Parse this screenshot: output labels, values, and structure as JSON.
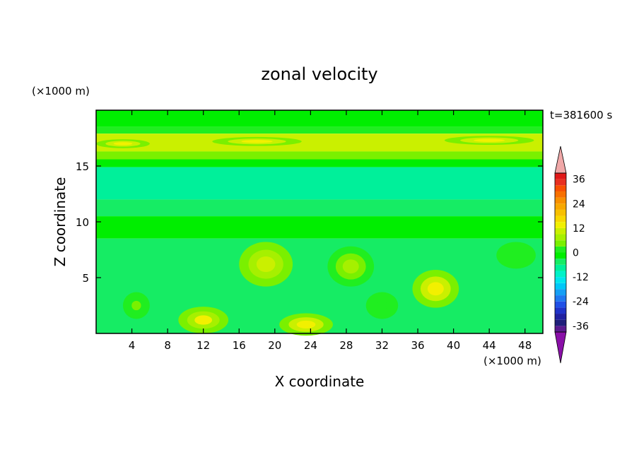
{
  "chart_data": {
    "type": "heatmap",
    "title": "zonal velocity",
    "xlabel": "X coordinate",
    "ylabel": "Z coordinate",
    "x_unit": "(×1000 m)",
    "y_unit": "(×1000 m)",
    "time_label": "t=381600 s",
    "xlim": [
      0,
      50
    ],
    "ylim": [
      0,
      20
    ],
    "x_ticks": [
      4,
      8,
      12,
      16,
      20,
      24,
      28,
      32,
      36,
      40,
      44,
      48
    ],
    "y_ticks": [
      5,
      10,
      15
    ],
    "colorbar": {
      "levels": [
        -39,
        -36,
        -33,
        -30,
        -27,
        -24,
        -21,
        -18,
        -15,
        -12,
        -9,
        -6,
        -3,
        0,
        3,
        6,
        9,
        12,
        15,
        18,
        21,
        24,
        27,
        30,
        33,
        36,
        39
      ],
      "colors": [
        "#5a1a8f",
        "#1f1f7a",
        "#2020a0",
        "#1f32c8",
        "#2050e6",
        "#1f78f0",
        "#159ff5",
        "#00c8f8",
        "#00e6ee",
        "#00f2c8",
        "#00f09a",
        "#16ec64",
        "#00ee00",
        "#20ee20",
        "#7af000",
        "#a6f000",
        "#caf000",
        "#f2f000",
        "#f8d800",
        "#f8c000",
        "#f8a800",
        "#f89000",
        "#f87000",
        "#f85000",
        "#e83020",
        "#e01818"
      ],
      "labels": [
        "36",
        "24",
        "12",
        "0",
        "-12",
        "-24",
        "-36"
      ],
      "label_values": [
        36,
        24,
        12,
        0,
        -12,
        -24,
        -36
      ],
      "over_color": "#f0a8a8",
      "under_color": "#8a10a8"
    },
    "field": {
      "band_rows": [
        {
          "z": [
            18.5,
            20
          ],
          "value": -3
        },
        {
          "z": [
            17.9,
            18.5
          ],
          "value": 1
        },
        {
          "z": [
            16.3,
            17.9
          ],
          "value": 9
        },
        {
          "z": [
            15.6,
            16.3
          ],
          "value": 3
        },
        {
          "z": [
            14.9,
            15.6
          ],
          "value": -3
        },
        {
          "z": [
            12.0,
            14.9
          ],
          "value": -9
        },
        {
          "z": [
            10.5,
            12.0
          ],
          "value": -5
        },
        {
          "z": [
            8.5,
            10.5
          ],
          "value": -2
        },
        {
          "z": [
            0,
            8.5
          ],
          "value": -4
        }
      ],
      "blobs": [
        {
          "x": 19,
          "z": 6.2,
          "rx": 3.0,
          "rz": 2.0,
          "value": 10
        },
        {
          "x": 28.5,
          "z": 6.0,
          "rx": 2.6,
          "rz": 1.8,
          "value": 8
        },
        {
          "x": 38,
          "z": 4.0,
          "rx": 2.6,
          "rz": 1.7,
          "value": 14
        },
        {
          "x": 12,
          "z": 1.2,
          "rx": 2.8,
          "rz": 1.2,
          "value": 12
        },
        {
          "x": 23.5,
          "z": 0.8,
          "rx": 3.0,
          "rz": 1.0,
          "value": 14
        },
        {
          "x": 4.5,
          "z": 2.5,
          "rx": 1.5,
          "rz": 1.2,
          "value": 4
        },
        {
          "x": 47,
          "z": 7.0,
          "rx": 2.2,
          "rz": 1.2,
          "value": 2
        },
        {
          "x": 32,
          "z": 2.5,
          "rx": 1.8,
          "rz": 1.2,
          "value": 2
        },
        {
          "x": 18,
          "z": 17.2,
          "rx": 5.0,
          "rz": 0.4,
          "value": 14
        },
        {
          "x": 44,
          "z": 17.3,
          "rx": 5.0,
          "rz": 0.4,
          "value": 14
        },
        {
          "x": 3,
          "z": 17.0,
          "rx": 3.0,
          "rz": 0.4,
          "value": 13
        }
      ]
    }
  }
}
